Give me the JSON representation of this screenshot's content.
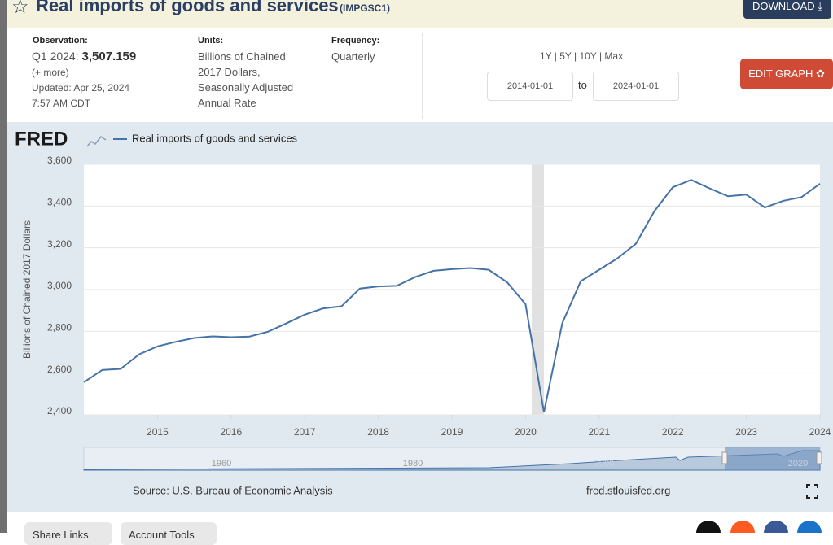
{
  "header": {
    "title": "Real imports of goods and services",
    "series_id": "(IMPGSC1)",
    "download": "DOWNLOAD"
  },
  "info": {
    "observation_label": "Observation:",
    "observation_period": "Q1 2024:",
    "observation_value": "3,507.159",
    "more": "(+ more)",
    "updated": "Updated: Apr 25, 2024",
    "updated_time": "7:57 AM CDT",
    "units_label": "Units:",
    "units": "Billions of Chained 2017 Dollars, Seasonally Adjusted Annual Rate",
    "frequency_label": "Frequency:",
    "frequency": "Quarterly",
    "ranges": "1Y | 5Y | 10Y | Max",
    "start_date": "2014-01-01",
    "to": "to",
    "end_date": "2024-01-01",
    "edit": "EDIT GRAPH"
  },
  "chart_data": {
    "type": "line",
    "logo": "FRED",
    "y_label": "Billions of Chained 2017 Dollars",
    "x": [
      2014,
      2014.25,
      2014.5,
      2014.75,
      2015,
      2015.25,
      2015.5,
      2015.75,
      2016,
      2016.25,
      2016.5,
      2016.75,
      2017,
      2017.25,
      2017.5,
      2017.75,
      2018,
      2018.25,
      2018.5,
      2018.75,
      2019,
      2019.25,
      2019.5,
      2019.75,
      2020,
      2020.25,
      2020.5,
      2020.75,
      2021,
      2021.25,
      2021.5,
      2021.75,
      2022,
      2022.25,
      2022.5,
      2022.75,
      2023,
      2023.25,
      2023.5,
      2023.75,
      2024
    ],
    "series": [
      {
        "name": "Real imports of goods and services",
        "color": "#4572a7",
        "values": [
          2556,
          2615,
          2620,
          2690,
          2728,
          2750,
          2768,
          2776,
          2772,
          2775,
          2798,
          2838,
          2880,
          2910,
          2920,
          3005,
          3015,
          3018,
          3060,
          3090,
          3098,
          3103,
          3095,
          3035,
          2930,
          2413,
          2840,
          3040,
          3095,
          3150,
          3220,
          3375,
          3490,
          3525,
          3485,
          3447,
          3455,
          3393,
          3425,
          3443,
          3507.159
        ]
      }
    ],
    "recessions": [
      [
        2020.083,
        2020.25
      ]
    ],
    "xlim": [
      2014,
      2024
    ],
    "xticks": [
      2015,
      2016,
      2017,
      2018,
      2019,
      2020,
      2021,
      2022,
      2023,
      2024
    ],
    "ylim": [
      2400,
      3600
    ],
    "yticks": [
      {
        "value": 2400,
        "label": "2,400"
      },
      {
        "value": 2600,
        "label": "2,600"
      },
      {
        "value": 2800,
        "label": "2,800"
      },
      {
        "value": 3000,
        "label": "3,000"
      },
      {
        "value": 3200,
        "label": "3,200"
      },
      {
        "value": 3400,
        "label": "3,400"
      },
      {
        "value": 3600,
        "label": "3,600"
      }
    ],
    "grid": true,
    "navigator_labels": [
      "1960",
      "1980",
      "2000",
      "2020"
    ],
    "source": "Source: U.S. Bureau of Economic Analysis",
    "site": "fred.stlouisfed.org"
  },
  "footer": {
    "share": "Share Links",
    "account": "Account Tools"
  }
}
